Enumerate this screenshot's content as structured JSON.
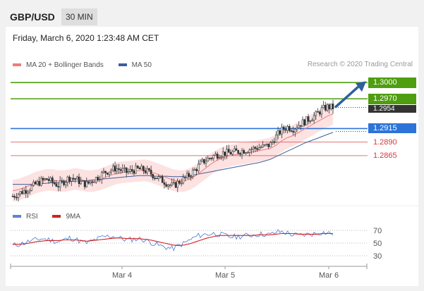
{
  "header": {
    "symbol": "GBP/USD",
    "timeframe": "30 MIN"
  },
  "datetime": "Friday, March 6, 2020 1:23:48 AM CET",
  "legend": {
    "ma20_label": "MA 20 + Bollinger Bands",
    "ma50_label": "MA 50",
    "rsi_label": "RSI",
    "nine_ma_label": "9MA",
    "credit": "Research © 2020 Trading Central"
  },
  "colors": {
    "ma20": "#f07a7a",
    "ma50": "#3d5f9a",
    "bollinger_fill": "#fde2e2",
    "resistance": "#4e9e0f",
    "pivot": "#2b74d9",
    "support": "#d9363e",
    "price_tag": "#333333",
    "rsi": "#5b84d6",
    "rsi_ma": "#d42020",
    "candle": "#333333"
  },
  "chart_data": [
    {
      "type": "candlestick",
      "title": "GBP/USD",
      "x_tick_labels": [
        "Mar 4",
        "Mar 5",
        "Mar 6"
      ],
      "y_range": [
        1.2775,
        1.3025
      ],
      "levels": [
        {
          "name": "resistance-2",
          "value": 1.3,
          "label": "1.3000",
          "kind": "resistance"
        },
        {
          "name": "resistance-1",
          "value": 1.297,
          "label": "1.2970",
          "kind": "resistance"
        },
        {
          "name": "last-price",
          "value": 1.2954,
          "label": "1.2954",
          "kind": "price"
        },
        {
          "name": "pivot",
          "value": 1.2915,
          "label": "1.2915",
          "kind": "pivot"
        },
        {
          "name": "support-1",
          "value": 1.289,
          "label": "1.2890",
          "kind": "support"
        },
        {
          "name": "support-2",
          "value": 1.2865,
          "label": "1.2865",
          "kind": "support"
        }
      ],
      "close_path": [
        1.279,
        1.2795,
        1.28,
        1.2805,
        1.2812,
        1.2818,
        1.2822,
        1.2815,
        1.281,
        1.2818,
        1.2825,
        1.2822,
        1.2815,
        1.2812,
        1.282,
        1.2826,
        1.2834,
        1.2838,
        1.2842,
        1.2838,
        1.2834,
        1.2838,
        1.284,
        1.2838,
        1.2833,
        1.2826,
        1.282,
        1.2814,
        1.2808,
        1.2816,
        1.2822,
        1.283,
        1.284,
        1.2852,
        1.2858,
        1.2864,
        1.2868,
        1.287,
        1.287,
        1.2872,
        1.2874,
        1.2876,
        1.2878,
        1.288,
        1.2882,
        1.2885,
        1.29,
        1.2912,
        1.2918,
        1.2915,
        1.2922,
        1.2928,
        1.2934,
        1.294,
        1.295,
        1.2955,
        1.2954
      ],
      "ma20_path": [
        1.28,
        1.2802,
        1.2806,
        1.281,
        1.2815,
        1.2818,
        1.282,
        1.282,
        1.2818,
        1.2818,
        1.282,
        1.2822,
        1.282,
        1.2818,
        1.2818,
        1.282,
        1.2824,
        1.2828,
        1.2832,
        1.2834,
        1.2835,
        1.2836,
        1.2837,
        1.2838,
        1.2836,
        1.2832,
        1.2828,
        1.2824,
        1.282,
        1.2818,
        1.2818,
        1.2822,
        1.2828,
        1.2836,
        1.2844,
        1.2852,
        1.2858,
        1.2862,
        1.2865,
        1.2867,
        1.2869,
        1.287,
        1.2872,
        1.2874,
        1.2876,
        1.2878,
        1.2884,
        1.2892,
        1.2898,
        1.2902,
        1.2908,
        1.2914,
        1.292,
        1.2926,
        1.2932,
        1.2938,
        1.2942
      ],
      "ma50_path": [
        1.2812,
        1.2812,
        1.2812,
        1.2812,
        1.2813,
        1.2813,
        1.2814,
        1.2815,
        1.2815,
        1.2816,
        1.2817,
        1.2818,
        1.2818,
        1.2819,
        1.282,
        1.2821,
        1.2822,
        1.2823,
        1.2824,
        1.2825,
        1.2826,
        1.2827,
        1.2828,
        1.2828,
        1.2828,
        1.2827,
        1.2827,
        1.2827,
        1.2826,
        1.2826,
        1.2827,
        1.2828,
        1.283,
        1.2832,
        1.2834,
        1.2836,
        1.2838,
        1.284,
        1.2842,
        1.2844,
        1.2846,
        1.2848,
        1.285,
        1.2852,
        1.2855,
        1.2858,
        1.2863,
        1.2868,
        1.2873,
        1.2878,
        1.2883,
        1.2888,
        1.2892,
        1.2896,
        1.29,
        1.2904,
        1.2908
      ],
      "bollinger_half_width": 0.002
    },
    {
      "type": "line",
      "title": "RSI",
      "y_range": [
        20,
        80
      ],
      "y_tick_labels": [
        "70",
        "50",
        "30"
      ],
      "y_tick_values": [
        70,
        50,
        30
      ],
      "gridlines": [
        70,
        50,
        30
      ],
      "rsi_path": [
        46,
        48,
        50,
        53,
        55,
        57,
        56,
        54,
        52,
        55,
        58,
        56,
        52,
        50,
        54,
        57,
        60,
        61,
        60,
        57,
        55,
        56,
        57,
        55,
        52,
        48,
        45,
        43,
        41,
        46,
        50,
        55,
        60,
        63,
        64,
        65,
        64,
        62,
        60,
        60,
        61,
        62,
        63,
        64,
        64,
        63,
        67,
        68,
        66,
        63,
        62,
        63,
        64,
        65,
        67,
        66,
        65
      ],
      "ma9_path": [
        48,
        48,
        49,
        50,
        52,
        53,
        54,
        54,
        54,
        55,
        55,
        55,
        54,
        53,
        54,
        55,
        56,
        57,
        58,
        58,
        57,
        57,
        57,
        56,
        55,
        53,
        51,
        49,
        47,
        46,
        47,
        49,
        52,
        55,
        58,
        60,
        62,
        62,
        62,
        62,
        62,
        62,
        62,
        63,
        63,
        63,
        64,
        65,
        65,
        65,
        64,
        64,
        64,
        64,
        65,
        65,
        65
      ]
    }
  ]
}
